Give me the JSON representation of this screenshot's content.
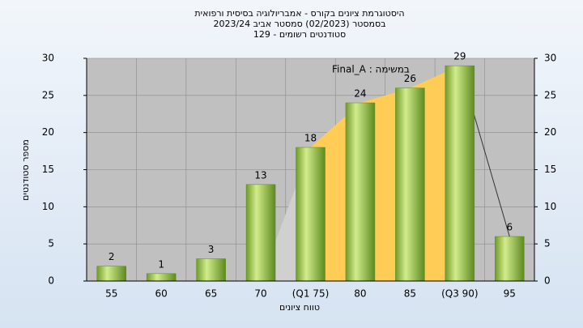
{
  "chart_data": {
    "type": "bar",
    "title": [
      "היסטוגרמת ציונים בקורס - אמבריולוגיה בסיסית ורפואית",
      "בסמסטר  (02/2023)  סמסטר אביב 2023/24",
      "סטודנטים רשומים - 129"
    ],
    "annotation": "במשימה : Final_A",
    "x_label": "טווח ציונים",
    "y_label": "מספר סטודנטים",
    "categories": [
      "55",
      "60",
      "65",
      "70",
      "(Q1 75)",
      "80",
      "85",
      "(Q3 90)",
      "95"
    ],
    "values": [
      2,
      1,
      3,
      13,
      18,
      24,
      26,
      29,
      6
    ],
    "color": "#8fbc3c",
    "ylim": [
      0,
      30
    ],
    "yticks": [
      0,
      5,
      10,
      15,
      20,
      25,
      30
    ],
    "y2lim": [
      0,
      30
    ],
    "y2ticks": [
      0,
      5,
      10,
      15,
      20,
      25,
      30
    ],
    "grid": true
  }
}
